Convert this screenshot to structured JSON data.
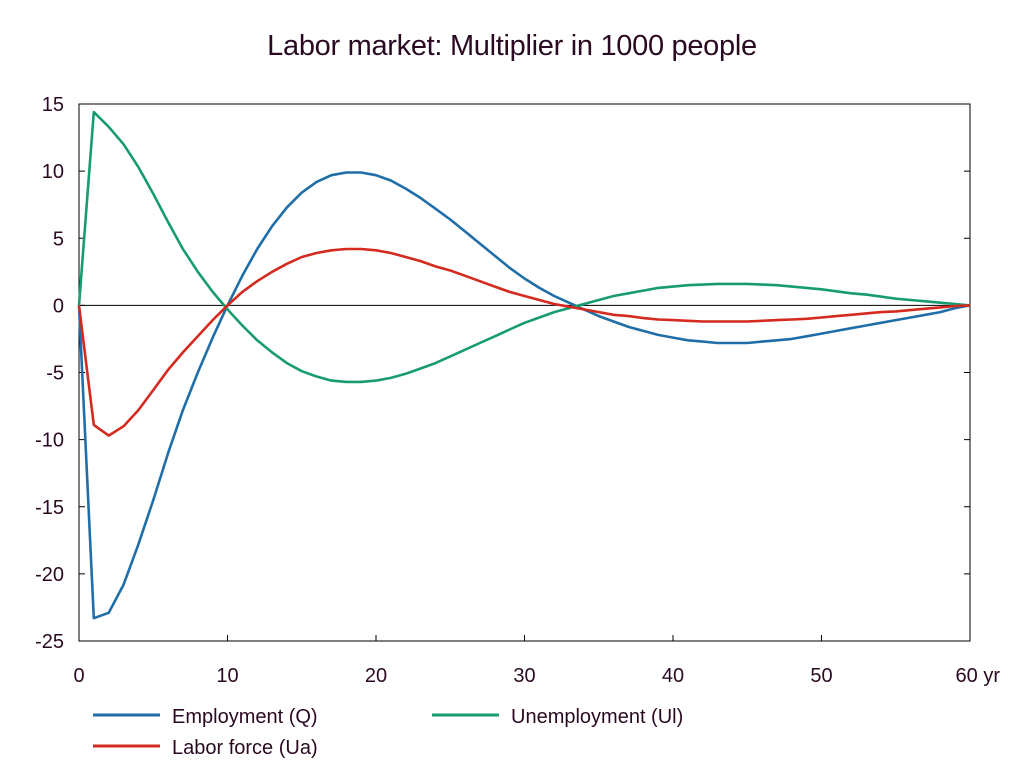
{
  "chart_data": {
    "type": "line",
    "title": "Labor market: Multiplier in 1000 people",
    "xlabel": "",
    "ylabel": "",
    "xlim": [
      0,
      60
    ],
    "ylim": [
      -25,
      15
    ],
    "x_ticks": [
      {
        "value": 0,
        "label": "0"
      },
      {
        "value": 10,
        "label": "10"
      },
      {
        "value": 20,
        "label": "20"
      },
      {
        "value": 30,
        "label": "30"
      },
      {
        "value": 40,
        "label": "40"
      },
      {
        "value": 50,
        "label": "50"
      },
      {
        "value": 60,
        "label": "60 yr"
      }
    ],
    "y_ticks": [
      {
        "value": 15,
        "label": "15"
      },
      {
        "value": 10,
        "label": "10"
      },
      {
        "value": 5,
        "label": "5"
      },
      {
        "value": 0,
        "label": "0"
      },
      {
        "value": -5,
        "label": "-5"
      },
      {
        "value": -10,
        "label": "-10"
      },
      {
        "value": -15,
        "label": "-15"
      },
      {
        "value": -20,
        "label": "-20"
      },
      {
        "value": -25,
        "label": "-25"
      }
    ],
    "grid": false,
    "legend_position": "bottom",
    "series": [
      {
        "name": "Employment (Q)",
        "color": "#1f6ea8",
        "points": [
          [
            0,
            0
          ],
          [
            1,
            -23.3
          ],
          [
            2,
            -22.9
          ],
          [
            3,
            -20.8
          ],
          [
            4,
            -17.8
          ],
          [
            5,
            -14.5
          ],
          [
            6,
            -11.0
          ],
          [
            7,
            -7.8
          ],
          [
            8,
            -5.0
          ],
          [
            9,
            -2.4
          ],
          [
            10,
            0
          ],
          [
            11,
            2.2
          ],
          [
            12,
            4.2
          ],
          [
            13,
            5.9
          ],
          [
            14,
            7.3
          ],
          [
            15,
            8.4
          ],
          [
            16,
            9.2
          ],
          [
            17,
            9.7
          ],
          [
            18,
            9.9
          ],
          [
            19,
            9.9
          ],
          [
            20,
            9.7
          ],
          [
            21,
            9.3
          ],
          [
            22,
            8.7
          ],
          [
            23,
            8.0
          ],
          [
            24,
            7.2
          ],
          [
            25,
            6.4
          ],
          [
            26,
            5.5
          ],
          [
            27,
            4.6
          ],
          [
            28,
            3.7
          ],
          [
            29,
            2.8
          ],
          [
            30,
            2.0
          ],
          [
            31,
            1.3
          ],
          [
            32,
            0.7
          ],
          [
            33,
            0.2
          ],
          [
            34,
            -0.3
          ],
          [
            35,
            -0.8
          ],
          [
            36,
            -1.2
          ],
          [
            37,
            -1.6
          ],
          [
            38,
            -1.9
          ],
          [
            39,
            -2.2
          ],
          [
            40,
            -2.4
          ],
          [
            41,
            -2.6
          ],
          [
            42,
            -2.7
          ],
          [
            43,
            -2.8
          ],
          [
            44,
            -2.8
          ],
          [
            45,
            -2.8
          ],
          [
            46,
            -2.7
          ],
          [
            47,
            -2.6
          ],
          [
            48,
            -2.5
          ],
          [
            49,
            -2.3
          ],
          [
            50,
            -2.1
          ],
          [
            51,
            -1.9
          ],
          [
            52,
            -1.7
          ],
          [
            53,
            -1.5
          ],
          [
            54,
            -1.3
          ],
          [
            55,
            -1.1
          ],
          [
            56,
            -0.9
          ],
          [
            57,
            -0.7
          ],
          [
            58,
            -0.5
          ],
          [
            59,
            -0.2
          ],
          [
            60,
            0
          ]
        ]
      },
      {
        "name": "Unemployment (Ul)",
        "color": "#179c72",
        "points": [
          [
            0,
            0
          ],
          [
            1,
            14.4
          ],
          [
            2,
            13.3
          ],
          [
            3,
            12.0
          ],
          [
            4,
            10.3
          ],
          [
            5,
            8.3
          ],
          [
            6,
            6.2
          ],
          [
            7,
            4.2
          ],
          [
            8,
            2.5
          ],
          [
            9,
            1.0
          ],
          [
            10,
            -0.3
          ],
          [
            11,
            -1.5
          ],
          [
            12,
            -2.6
          ],
          [
            13,
            -3.5
          ],
          [
            14,
            -4.3
          ],
          [
            15,
            -4.9
          ],
          [
            16,
            -5.3
          ],
          [
            17,
            -5.6
          ],
          [
            18,
            -5.7
          ],
          [
            19,
            -5.7
          ],
          [
            20,
            -5.6
          ],
          [
            21,
            -5.4
          ],
          [
            22,
            -5.1
          ],
          [
            23,
            -4.7
          ],
          [
            24,
            -4.3
          ],
          [
            25,
            -3.8
          ],
          [
            26,
            -3.3
          ],
          [
            27,
            -2.8
          ],
          [
            28,
            -2.3
          ],
          [
            29,
            -1.8
          ],
          [
            30,
            -1.3
          ],
          [
            31,
            -0.9
          ],
          [
            32,
            -0.5
          ],
          [
            33,
            -0.2
          ],
          [
            34,
            0.1
          ],
          [
            35,
            0.4
          ],
          [
            36,
            0.7
          ],
          [
            37,
            0.9
          ],
          [
            38,
            1.1
          ],
          [
            39,
            1.3
          ],
          [
            40,
            1.4
          ],
          [
            41,
            1.5
          ],
          [
            42,
            1.55
          ],
          [
            43,
            1.6
          ],
          [
            44,
            1.6
          ],
          [
            45,
            1.6
          ],
          [
            46,
            1.55
          ],
          [
            47,
            1.5
          ],
          [
            48,
            1.4
          ],
          [
            49,
            1.3
          ],
          [
            50,
            1.2
          ],
          [
            51,
            1.05
          ],
          [
            52,
            0.9
          ],
          [
            53,
            0.8
          ],
          [
            54,
            0.65
          ],
          [
            55,
            0.5
          ],
          [
            56,
            0.4
          ],
          [
            57,
            0.3
          ],
          [
            58,
            0.2
          ],
          [
            59,
            0.1
          ],
          [
            60,
            0
          ]
        ]
      },
      {
        "name": "Labor force (Ua)",
        "color": "#d42a1f",
        "points": [
          [
            0,
            0
          ],
          [
            1,
            -8.9
          ],
          [
            2,
            -9.7
          ],
          [
            3,
            -9.0
          ],
          [
            4,
            -7.8
          ],
          [
            5,
            -6.3
          ],
          [
            6,
            -4.8
          ],
          [
            7,
            -3.5
          ],
          [
            8,
            -2.3
          ],
          [
            9,
            -1.1
          ],
          [
            10,
            0
          ],
          [
            11,
            1.0
          ],
          [
            12,
            1.8
          ],
          [
            13,
            2.5
          ],
          [
            14,
            3.1
          ],
          [
            15,
            3.6
          ],
          [
            16,
            3.9
          ],
          [
            17,
            4.1
          ],
          [
            18,
            4.2
          ],
          [
            19,
            4.2
          ],
          [
            20,
            4.1
          ],
          [
            21,
            3.9
          ],
          [
            22,
            3.6
          ],
          [
            23,
            3.3
          ],
          [
            24,
            2.9
          ],
          [
            25,
            2.6
          ],
          [
            26,
            2.2
          ],
          [
            27,
            1.8
          ],
          [
            28,
            1.4
          ],
          [
            29,
            1.0
          ],
          [
            30,
            0.7
          ],
          [
            31,
            0.4
          ],
          [
            32,
            0.1
          ],
          [
            33,
            -0.1
          ],
          [
            34,
            -0.3
          ],
          [
            35,
            -0.5
          ],
          [
            36,
            -0.7
          ],
          [
            37,
            -0.8
          ],
          [
            38,
            -0.95
          ],
          [
            39,
            -1.05
          ],
          [
            40,
            -1.1
          ],
          [
            41,
            -1.15
          ],
          [
            42,
            -1.2
          ],
          [
            43,
            -1.2
          ],
          [
            44,
            -1.2
          ],
          [
            45,
            -1.2
          ],
          [
            46,
            -1.15
          ],
          [
            47,
            -1.1
          ],
          [
            48,
            -1.05
          ],
          [
            49,
            -1.0
          ],
          [
            50,
            -0.9
          ],
          [
            51,
            -0.8
          ],
          [
            52,
            -0.7
          ],
          [
            53,
            -0.6
          ],
          [
            54,
            -0.5
          ],
          [
            55,
            -0.45
          ],
          [
            56,
            -0.35
          ],
          [
            57,
            -0.25
          ],
          [
            58,
            -0.15
          ],
          [
            59,
            -0.05
          ],
          [
            60,
            0
          ]
        ]
      }
    ]
  }
}
